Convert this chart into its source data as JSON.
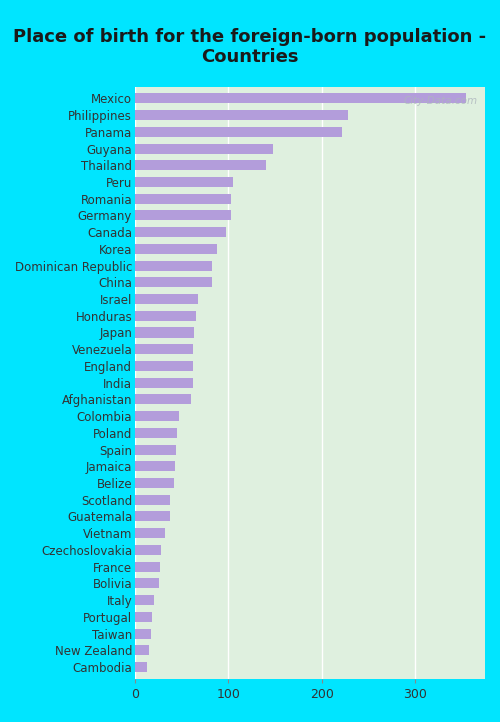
{
  "title": "Place of birth for the foreign-born population -\nCountries",
  "categories": [
    "Mexico",
    "Philippines",
    "Panama",
    "Guyana",
    "Thailand",
    "Peru",
    "Romania",
    "Germany",
    "Canada",
    "Korea",
    "Dominican Republic",
    "China",
    "Israel",
    "Honduras",
    "Japan",
    "Venezuela",
    "England",
    "India",
    "Afghanistan",
    "Colombia",
    "Poland",
    "Spain",
    "Jamaica",
    "Belize",
    "Scotland",
    "Guatemala",
    "Vietnam",
    "Czechoslovakia",
    "France",
    "Bolivia",
    "Italy",
    "Portugal",
    "Taiwan",
    "New Zealand",
    "Cambodia"
  ],
  "values": [
    355,
    228,
    222,
    148,
    140,
    105,
    103,
    103,
    97,
    88,
    83,
    82,
    67,
    65,
    63,
    62,
    62,
    62,
    60,
    47,
    45,
    44,
    43,
    42,
    38,
    37,
    32,
    28,
    27,
    26,
    20,
    18,
    17,
    15,
    13
  ],
  "bar_color": "#b39ddb",
  "background_outer": "#00e5ff",
  "background_inner": "#dff0df",
  "watermark": "City-Data.com",
  "xlim": [
    0,
    375
  ],
  "xticks": [
    0,
    100,
    200,
    300
  ],
  "title_fontsize": 13,
  "tick_fontsize": 9,
  "label_fontsize": 8.5,
  "title_color": "#1a1a1a"
}
